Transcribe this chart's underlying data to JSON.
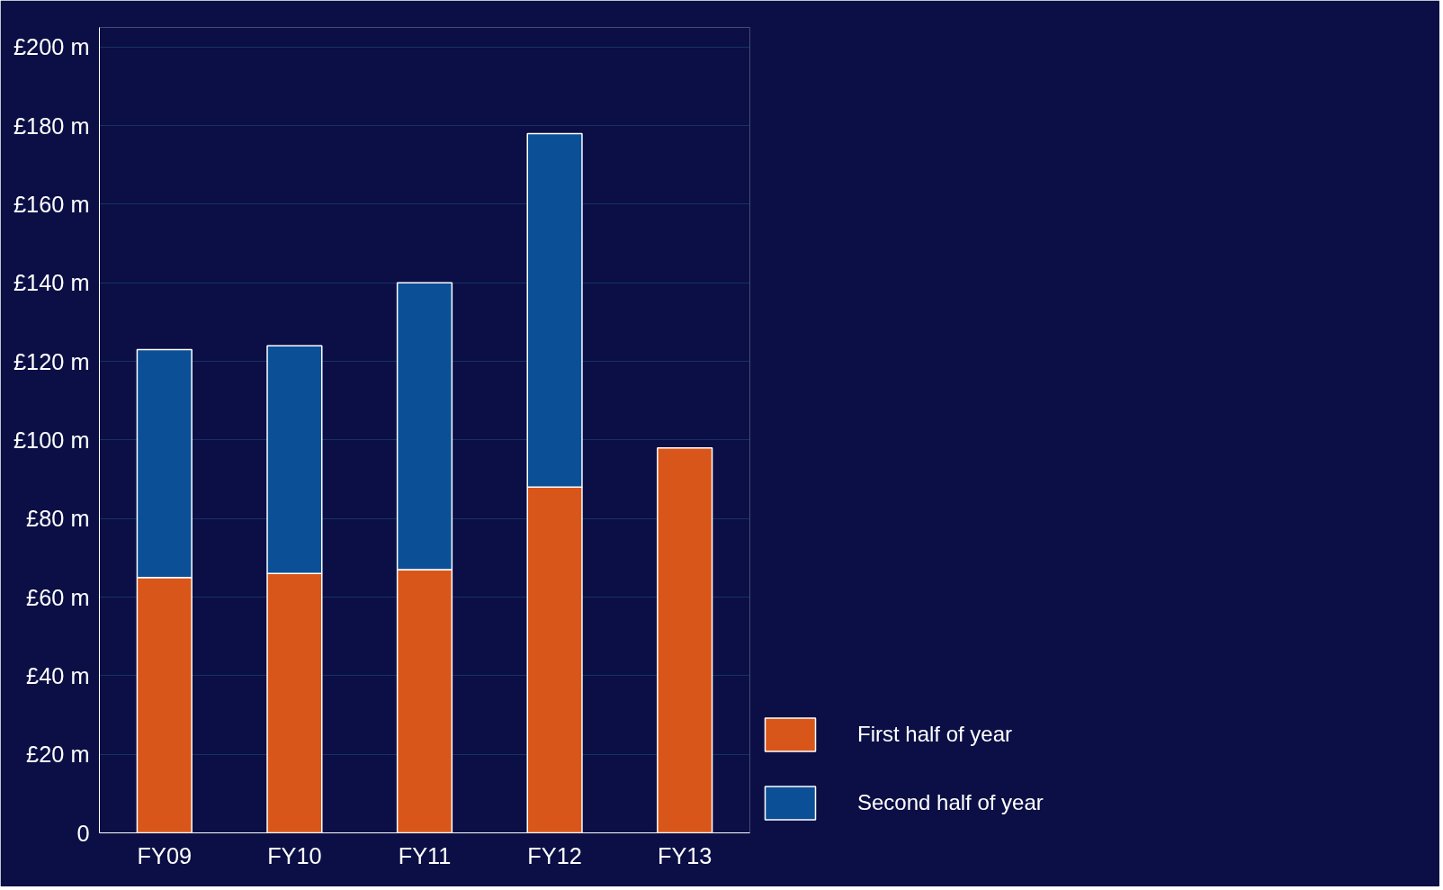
{
  "chart_data": {
    "type": "bar",
    "stacked": true,
    "categories": [
      "FY09",
      "FY10",
      "FY11",
      "FY12",
      "FY13"
    ],
    "series": [
      {
        "name": "First half of year",
        "color": "#d9561a",
        "values": [
          65,
          66,
          67,
          88,
          98
        ]
      },
      {
        "name": "Second half of year",
        "color": "#0b4f96",
        "values": [
          58,
          58,
          73,
          90,
          null
        ]
      }
    ],
    "ylim": [
      0,
      205
    ],
    "yticks": [
      0,
      {
        "value": 20,
        "label": "£20 m"
      },
      {
        "value": 40,
        "label": "£40 m"
      },
      {
        "value": 60,
        "label": "£60 m"
      },
      {
        "value": 80,
        "label": "£80 m"
      },
      {
        "value": 100,
        "label": "£100 m"
      },
      {
        "value": 120,
        "label": "£120 m"
      },
      {
        "value": 140,
        "label": "£140 m"
      },
      {
        "value": 160,
        "label": "£160 m"
      },
      {
        "value": 180,
        "label": "£180 m"
      },
      {
        "value": 200,
        "label": "£200 m"
      }
    ],
    "grid": "y",
    "legend": "bottom right"
  }
}
